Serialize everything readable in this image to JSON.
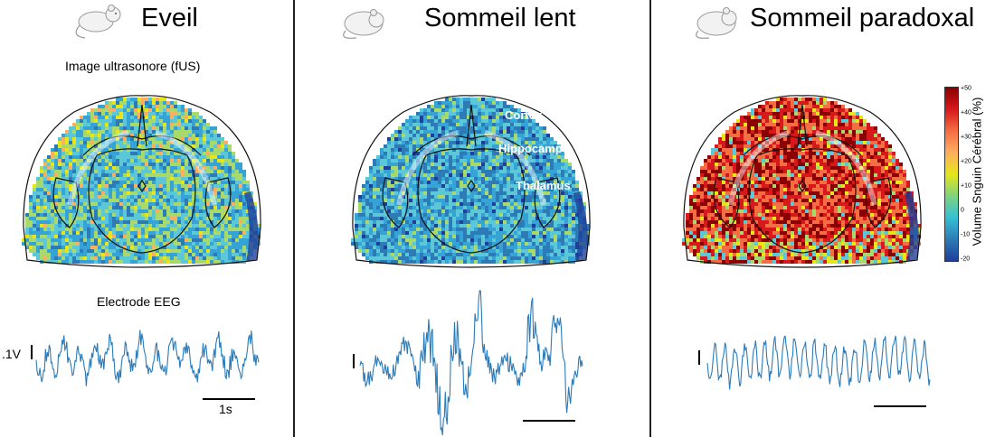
{
  "panels": [
    {
      "title": "Eveil",
      "fus_label": "Image ultrasonore (fUS)",
      "eeg_label": "Electrode EEG",
      "voltage_label": ".1V",
      "time_label": "1s"
    },
    {
      "title": "Sommeil lent"
    },
    {
      "title": "Sommeil paradoxal"
    }
  ],
  "regions": [
    "Cortex",
    "Hippocampe",
    "Thalamus"
  ],
  "colorbar": {
    "label": "Volume Snguin Cérébral (%)",
    "ticks": [
      "+50",
      "+40",
      "+30",
      "+20",
      "+10",
      "0",
      "-10",
      "-20"
    ]
  },
  "colors": {
    "eeg": "#2b7bb9",
    "divider": "#222222"
  },
  "states": [
    "wake-low-activation",
    "slow-wave-low-activation",
    "paradoxical-high-activation"
  ]
}
